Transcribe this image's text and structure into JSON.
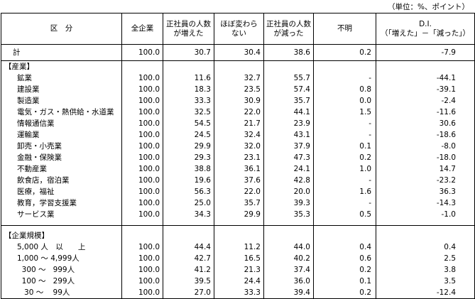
{
  "unit_note": "（単位：%、ポイント）",
  "table": {
    "header": [
      "区　分",
      "全企業",
      "正社員の人数\nが増えた",
      "ほぼ変わら\nない",
      "正社員の人数\nが減った",
      "不明",
      "D.I.\n（「増えた」－「減った」）"
    ],
    "total": [
      "計",
      "100.0",
      "30.7",
      "30.4",
      "38.6",
      "0.2",
      "-7.9"
    ],
    "sections": [
      {
        "title": "【産業】",
        "rows": [
          [
            "鉱業",
            "100.0",
            "11.6",
            "32.7",
            "55.7",
            "-",
            "-44.1"
          ],
          [
            "建設業",
            "100.0",
            "18.3",
            "23.5",
            "57.4",
            "0.8",
            "-39.1"
          ],
          [
            "製造業",
            "100.0",
            "33.3",
            "30.9",
            "35.7",
            "0.0",
            "-2.4"
          ],
          [
            "電気・ガス・熱供給・水道業",
            "100.0",
            "32.5",
            "22.0",
            "44.1",
            "1.5",
            "-11.6"
          ],
          [
            "情報通信業",
            "100.0",
            "54.5",
            "21.7",
            "23.9",
            "-",
            "30.6"
          ],
          [
            "運輸業",
            "100.0",
            "24.5",
            "32.4",
            "43.1",
            "-",
            "-18.6"
          ],
          [
            "卸売・小売業",
            "100.0",
            "29.9",
            "32.0",
            "37.9",
            "0.1",
            "-8.0"
          ],
          [
            "金融・保険業",
            "100.0",
            "29.3",
            "23.1",
            "47.3",
            "0.2",
            "-18.0"
          ],
          [
            "不動産業",
            "100.0",
            "38.8",
            "36.1",
            "24.1",
            "1.0",
            "14.7"
          ],
          [
            "飲食店，宿泊業",
            "100.0",
            "19.6",
            "37.6",
            "42.8",
            "-",
            "-23.2"
          ],
          [
            "医療，福祉",
            "100.0",
            "56.3",
            "22.0",
            "20.0",
            "1.6",
            "36.3"
          ],
          [
            "教育，学習支援業",
            "100.0",
            "25.0",
            "35.7",
            "39.3",
            "-",
            "-14.3"
          ],
          [
            "サービス業",
            "100.0",
            "34.3",
            "29.9",
            "35.3",
            "0.5",
            "-1.0"
          ]
        ]
      },
      {
        "title": "【企業規模】",
        "rows": [
          [
            "5,000 人　以　　上",
            "100.0",
            "44.4",
            "11.2",
            "44.0",
            "0.4",
            "0.4"
          ],
          [
            "1,000 ～ 4,999人",
            "100.0",
            "42.7",
            "16.5",
            "40.2",
            "0.6",
            "2.5"
          ],
          [
            "  300 ～   999人",
            "100.0",
            "41.2",
            "21.3",
            "37.4",
            "0.2",
            "3.8"
          ],
          [
            "  100 ～   299人",
            "100.0",
            "39.5",
            "24.4",
            "36.0",
            "0.1",
            "3.5"
          ],
          [
            "   30 ～    99人",
            "100.0",
            "27.0",
            "33.3",
            "39.4",
            "0.2",
            "-12.4"
          ]
        ]
      }
    ]
  }
}
